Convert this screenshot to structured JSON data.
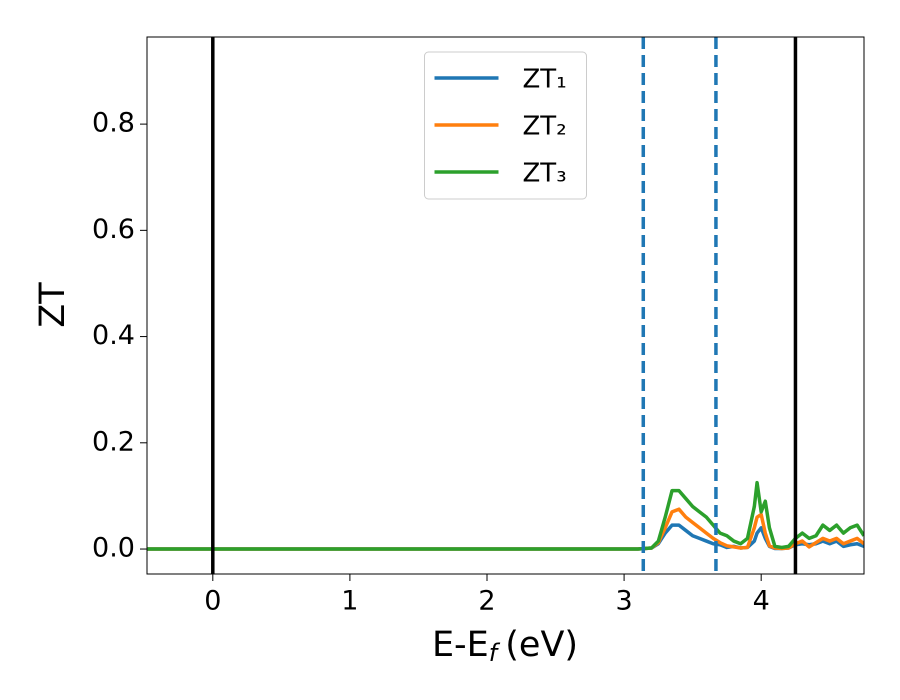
{
  "chart_data": {
    "type": "line",
    "ylabel": "ZT",
    "xlabel": {
      "main": "E-E",
      "sub": "f",
      "unit": "(eV)"
    },
    "x": [
      -0.48,
      3.1,
      3.2,
      3.25,
      3.3,
      3.35,
      3.4,
      3.45,
      3.5,
      3.55,
      3.6,
      3.65,
      3.7,
      3.75,
      3.8,
      3.85,
      3.9,
      3.95,
      3.97,
      4.0,
      4.03,
      4.06,
      4.1,
      4.15,
      4.2,
      4.25,
      4.3,
      4.35,
      4.4,
      4.45,
      4.5,
      4.55,
      4.6,
      4.65,
      4.7,
      4.75
    ],
    "series": [
      {
        "name": "ZT₁",
        "color": "#1f77b4",
        "values": [
          0,
          0,
          0.002,
          0.01,
          0.03,
          0.045,
          0.045,
          0.035,
          0.025,
          0.02,
          0.015,
          0.01,
          0.008,
          0.003,
          0.005,
          0.002,
          0.003,
          0.015,
          0.03,
          0.04,
          0.02,
          0.005,
          0.001,
          0.001,
          0.002,
          0.008,
          0.01,
          0.008,
          0.01,
          0.015,
          0.01,
          0.015,
          0.005,
          0.008,
          0.01,
          0.005
        ]
      },
      {
        "name": "ZT₂",
        "color": "#ff7f0e",
        "values": [
          0,
          0,
          0.002,
          0.012,
          0.04,
          0.07,
          0.075,
          0.06,
          0.05,
          0.04,
          0.03,
          0.02,
          0.012,
          0.006,
          0.004,
          0.002,
          0.003,
          0.04,
          0.06,
          0.065,
          0.03,
          0.006,
          0.002,
          0.001,
          0.002,
          0.01,
          0.015,
          0.004,
          0.012,
          0.02,
          0.015,
          0.02,
          0.01,
          0.015,
          0.02,
          0.01
        ]
      },
      {
        "name": "ZT₃",
        "color": "#2ca02c",
        "values": [
          0,
          0,
          0.002,
          0.015,
          0.06,
          0.11,
          0.11,
          0.095,
          0.08,
          0.07,
          0.06,
          0.045,
          0.03,
          0.025,
          0.015,
          0.01,
          0.02,
          0.08,
          0.125,
          0.07,
          0.09,
          0.04,
          0.005,
          0.003,
          0.005,
          0.02,
          0.03,
          0.02,
          0.025,
          0.045,
          0.035,
          0.045,
          0.03,
          0.04,
          0.045,
          0.025
        ]
      }
    ],
    "vlines": [
      {
        "x": 0,
        "color": "#000000",
        "style": "solid"
      },
      {
        "x": 4.25,
        "color": "#000000",
        "style": "solid"
      },
      {
        "x": 3.14,
        "color": "#1f77b4",
        "style": "dashed"
      },
      {
        "x": 3.67,
        "color": "#1f77b4",
        "style": "dashed"
      }
    ],
    "xlim": [
      -0.48,
      4.75
    ],
    "ylim": [
      -0.047,
      0.964
    ],
    "xticks": [
      0,
      1,
      2,
      3,
      4
    ],
    "yticks": [
      {
        "value": 0,
        "label": "0.0"
      },
      {
        "value": 0.2,
        "label": "0.2"
      },
      {
        "value": 0.4,
        "label": "0.4"
      },
      {
        "value": 0.6,
        "label": "0.6"
      },
      {
        "value": 0.8,
        "label": "0.8"
      }
    ],
    "grid": false,
    "legend": "upper center"
  }
}
